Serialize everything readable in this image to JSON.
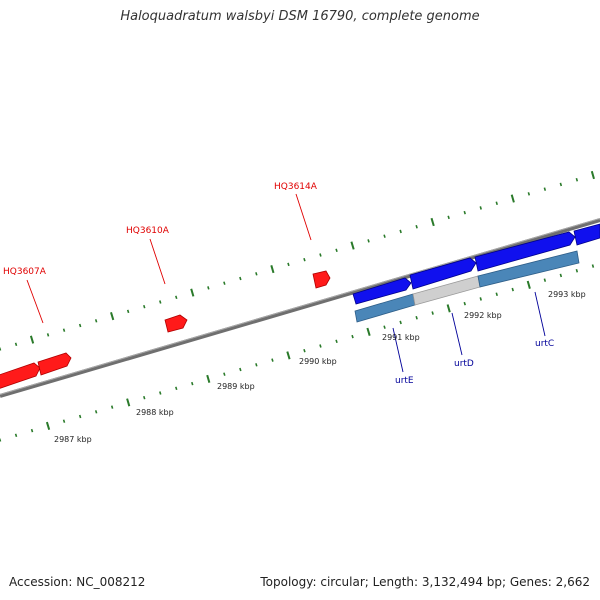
{
  "title": "Haloquadratum walsbyi DSM 16790, complete genome",
  "footer": {
    "accession": "Accession: NC_008212",
    "topology": "Topology: circular; Length: 3,132,494 bp; Genes: 2,662"
  },
  "colors": {
    "backbone": "#808080",
    "tick": "#2a7a2a",
    "gene_red": "#ff2020",
    "gene_blue": "#1414e6",
    "label_red": "#e00000",
    "label_blue": "#000099",
    "operon_blue": "#4682b4",
    "operon_gray": "#c8c8c8"
  },
  "scale_labels": [
    "2987 kbp",
    "2988 kbp",
    "2989 kbp",
    "2990 kbp",
    "2991 kbp",
    "2992 kbp",
    "2993 kbp"
  ],
  "genes_top": [
    "HQ3607A",
    "HQ3610A",
    "HQ3614A"
  ],
  "genes_bottom": [
    "urtE",
    "urtD",
    "urtC"
  ]
}
